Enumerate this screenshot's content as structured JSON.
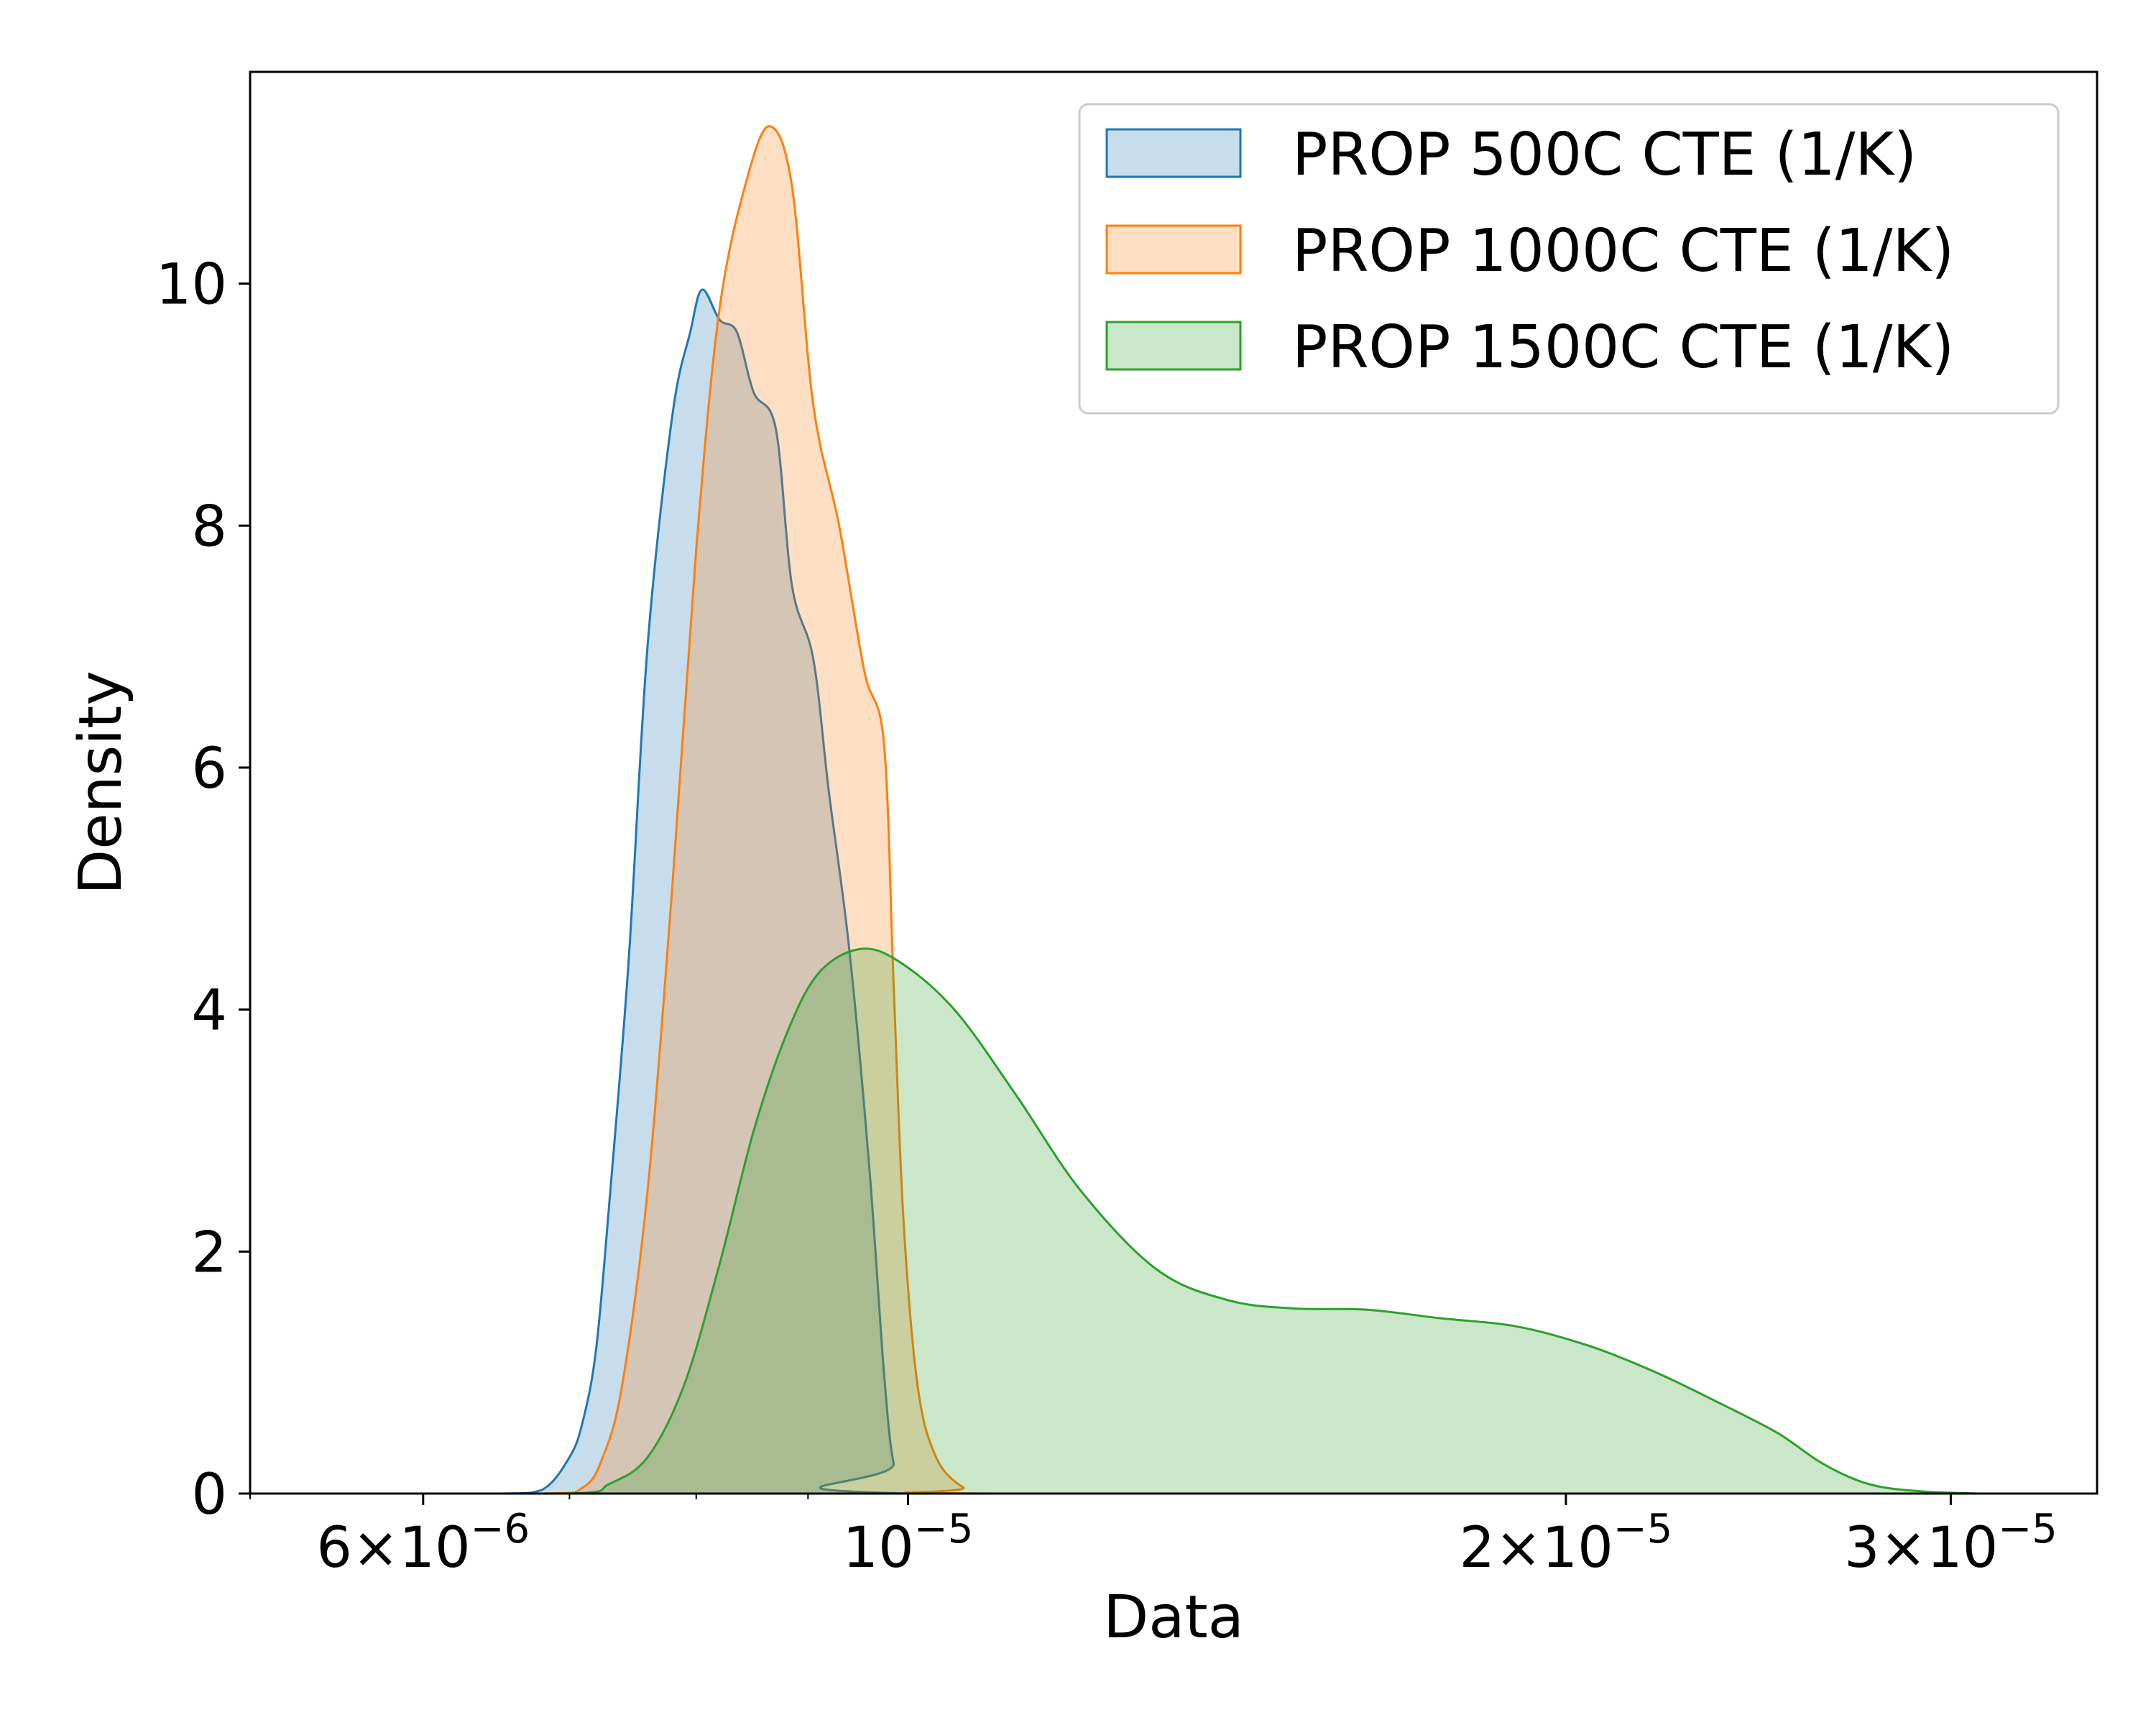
{
  "chart_data": {
    "type": "area",
    "title": "",
    "xlabel": "Data",
    "ylabel": "Density",
    "x_scale": "log",
    "xlim": [
      5e-06,
      3.5e-05
    ],
    "ylim": [
      0,
      11.75
    ],
    "grid": false,
    "legend_position": "top-right",
    "x_ticks": [
      {
        "value": 6e-06,
        "mantissa": "6",
        "exponent": "−6"
      },
      {
        "value": 1e-05,
        "mantissa": "",
        "exponent": "−5"
      },
      {
        "value": 2e-05,
        "mantissa": "2",
        "exponent": "−5"
      },
      {
        "value": 3e-05,
        "mantissa": "3",
        "exponent": "−5"
      }
    ],
    "x_minor_ticks": [
      5e-06,
      7e-06,
      8e-06,
      9e-06
    ],
    "y_ticks": [
      0,
      2,
      4,
      6,
      8,
      10
    ],
    "series": [
      {
        "name": "PROP 500C CTE (1/K)",
        "color": "#1f77b4",
        "points": [
          [
            5.5e-06,
            0.0
          ],
          [
            6.5e-06,
            0.0
          ],
          [
            6.8e-06,
            0.03
          ],
          [
            7e-06,
            0.3
          ],
          [
            7.1e-06,
            0.6
          ],
          [
            7.2e-06,
            1.2
          ],
          [
            7.3e-06,
            2.4
          ],
          [
            7.45e-06,
            4.4
          ],
          [
            7.6e-06,
            7.0
          ],
          [
            7.8e-06,
            8.9
          ],
          [
            7.95e-06,
            9.6
          ],
          [
            8.05e-06,
            9.95
          ],
          [
            8.2e-06,
            9.7
          ],
          [
            8.35e-06,
            9.6
          ],
          [
            8.5e-06,
            9.1
          ],
          [
            8.7e-06,
            8.8
          ],
          [
            8.85e-06,
            7.5
          ],
          [
            9.05e-06,
            6.9
          ],
          [
            9.2e-06,
            5.8
          ],
          [
            9.4e-06,
            4.5
          ],
          [
            9.6e-06,
            2.7
          ],
          [
            9.75e-06,
            1.0
          ],
          [
            9.85e-06,
            0.25
          ],
          [
            1e-05,
            0.0
          ],
          [
            3.3e-05,
            0.0
          ]
        ]
      },
      {
        "name": "PROP 1000C CTE (1/K)",
        "color": "#ff7f0e",
        "points": [
          [
            5.5e-06,
            0.0
          ],
          [
            6.8e-06,
            0.0
          ],
          [
            7.1e-06,
            0.05
          ],
          [
            7.25e-06,
            0.3
          ],
          [
            7.4e-06,
            0.9
          ],
          [
            7.6e-06,
            2.5
          ],
          [
            7.8e-06,
            5.0
          ],
          [
            8e-06,
            7.8
          ],
          [
            8.2e-06,
            9.8
          ],
          [
            8.45e-06,
            10.9
          ],
          [
            8.65e-06,
            11.3
          ],
          [
            8.85e-06,
            10.8
          ],
          [
            9.05e-06,
            9.0
          ],
          [
            9.3e-06,
            8.0
          ],
          [
            9.55e-06,
            6.8
          ],
          [
            9.75e-06,
            6.2
          ],
          [
            9.85e-06,
            4.2
          ],
          [
            9.95e-06,
            2.3
          ],
          [
            1.01e-05,
            0.9
          ],
          [
            1.03e-05,
            0.3
          ],
          [
            1.06e-05,
            0.05
          ],
          [
            1.09e-05,
            0.0
          ],
          [
            3.3e-05,
            0.0
          ]
        ]
      },
      {
        "name": "PROP 1500C CTE (1/K)",
        "color": "#2ca02c",
        "points": [
          [
            5.5e-06,
            0.0
          ],
          [
            7e-06,
            0.0
          ],
          [
            7.3e-06,
            0.08
          ],
          [
            7.6e-06,
            0.3
          ],
          [
            7.9e-06,
            0.9
          ],
          [
            8.2e-06,
            1.9
          ],
          [
            8.5e-06,
            3.0
          ],
          [
            8.8e-06,
            3.8
          ],
          [
            9.1e-06,
            4.3
          ],
          [
            9.5e-06,
            4.5
          ],
          [
            9.9e-06,
            4.4
          ],
          [
            1.05e-05,
            4.0
          ],
          [
            1.12e-05,
            3.3
          ],
          [
            1.2e-05,
            2.5
          ],
          [
            1.3e-05,
            1.85
          ],
          [
            1.4e-05,
            1.6
          ],
          [
            1.5e-05,
            1.53
          ],
          [
            1.62e-05,
            1.52
          ],
          [
            1.75e-05,
            1.45
          ],
          [
            1.9e-05,
            1.38
          ],
          [
            2.05e-05,
            1.22
          ],
          [
            2.2e-05,
            1.0
          ],
          [
            2.35e-05,
            0.75
          ],
          [
            2.5e-05,
            0.5
          ],
          [
            2.62e-05,
            0.25
          ],
          [
            2.75e-05,
            0.08
          ],
          [
            2.9e-05,
            0.02
          ],
          [
            3.1e-05,
            0.0
          ],
          [
            3.3e-05,
            0.0
          ]
        ]
      }
    ]
  }
}
